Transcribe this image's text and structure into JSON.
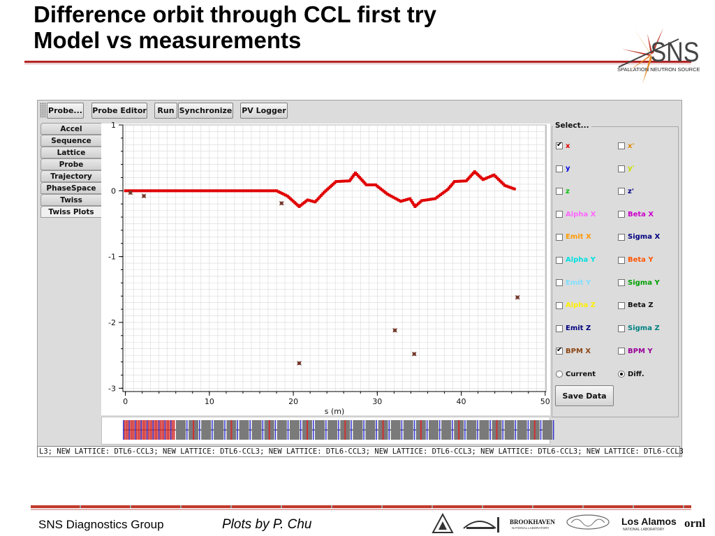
{
  "slide": {
    "title_line1": "Difference orbit through CCL first try",
    "title_line2": "Model vs measurements",
    "logo": {
      "text": "SNS",
      "subtitle": "SPALLATION NEUTRON SOURCE"
    },
    "footer_left": "SNS Diagnostics Group",
    "footer_mid": "Plots by P. Chu",
    "lab_logos": [
      "argonne-logo",
      "berkeley-lab-logo",
      "brookhaven-logo",
      "jefferson-lab-logo",
      "los-alamos-logo",
      "ornl-logo"
    ],
    "lab_logo_text": {
      "brookhaven": "BROOKHAVEN",
      "brookhaven_sub": "NATIONAL LABORATORY",
      "los_alamos": "Los Alamos",
      "los_alamos_sub": "NATIONAL LABORATORY",
      "ornl": "ornl"
    }
  },
  "toolbar": {
    "buttons": [
      "Probe...",
      "Probe Editor",
      "Run",
      "Synchronize",
      "PV Logger"
    ]
  },
  "tabs": [
    "Accel",
    "Sequence",
    "Lattice",
    "Probe",
    "Trajectory",
    "PhaseSpace",
    "Twiss",
    "Twiss Plots"
  ],
  "active_tab": "Twiss Plots",
  "select_panel": {
    "legend": "Select...",
    "options": [
      {
        "label": "x",
        "checked": true,
        "color": "#e00000"
      },
      {
        "label": "x'",
        "checked": false,
        "color": "#e08a00"
      },
      {
        "label": "y",
        "checked": false,
        "color": "#0000e0"
      },
      {
        "label": "y'",
        "checked": false,
        "color": "#c8e000"
      },
      {
        "label": "z",
        "checked": false,
        "color": "#00c000"
      },
      {
        "label": "z'",
        "checked": false,
        "color": "#000080"
      },
      {
        "label": "Alpha X",
        "checked": false,
        "color": "#ff66ff"
      },
      {
        "label": "Beta X",
        "checked": false,
        "color": "#cc00cc"
      },
      {
        "label": "Emit X",
        "checked": false,
        "color": "#ff9900"
      },
      {
        "label": "Sigma X",
        "checked": false,
        "color": "#000080"
      },
      {
        "label": "Alpha Y",
        "checked": false,
        "color": "#00e0e0"
      },
      {
        "label": "Beta Y",
        "checked": false,
        "color": "#ff5500"
      },
      {
        "label": "Emit Y",
        "checked": false,
        "color": "#7fdfff"
      },
      {
        "label": "Sigma Y",
        "checked": false,
        "color": "#00a000"
      },
      {
        "label": "Alpha Z",
        "checked": false,
        "color": "#ffee00"
      },
      {
        "label": "Beta Z",
        "checked": false,
        "color": "#111111"
      },
      {
        "label": "Emit Z",
        "checked": false,
        "color": "#000080"
      },
      {
        "label": "Sigma Z",
        "checked": false,
        "color": "#008080"
      },
      {
        "label": "BPM X",
        "checked": true,
        "color": "#8b4513"
      },
      {
        "label": "BPM Y",
        "checked": false,
        "color": "#990099"
      }
    ],
    "radios": [
      {
        "label": "Current",
        "selected": false
      },
      {
        "label": "Diff.",
        "selected": true
      }
    ],
    "save_button": "Save Data"
  },
  "status_text": "L3; NEW LATTICE: DTL6-CCL3; NEW LATTICE: DTL6-CCL3; NEW LATTICE: DTL6-CCL3; NEW LATTICE: DTL6-CCL3; NEW LATTICE: DTL6-CCL3; NEW LATTICE: DTL6-CCL3",
  "chart_data": {
    "type": "line",
    "xlabel": "s (m)",
    "ylabel": "",
    "xlim": [
      -0.3,
      50.1
    ],
    "ylim": [
      -3.05,
      1.0
    ],
    "x_ticks": [
      0,
      10,
      20,
      30,
      40,
      50
    ],
    "y_ticks": [
      1,
      0,
      -1,
      -2,
      -3
    ],
    "grid": true,
    "series": [
      {
        "type": "line",
        "color": "#e00000",
        "x": [
          0,
          18,
          19.3,
          20.7,
          21.7,
          22.6,
          23.7,
          25.1,
          26.7,
          27.4,
          28.7,
          29.8,
          31.2,
          32.8,
          33.9,
          34.5,
          35.3,
          36.9,
          38.4,
          39.2,
          40.6,
          41.6,
          42.6,
          43.9,
          45.2,
          46.5
        ],
        "y": [
          0.0,
          0.0,
          -0.08,
          -0.24,
          -0.14,
          -0.17,
          -0.02,
          0.14,
          0.15,
          0.27,
          0.09,
          0.09,
          -0.05,
          -0.16,
          -0.12,
          -0.24,
          -0.15,
          -0.12,
          0.02,
          0.14,
          0.15,
          0.29,
          0.17,
          0.24,
          0.08,
          0.02
        ]
      },
      {
        "type": "scatter",
        "color": "#8b4a3c",
        "x": [
          0.6,
          2.2,
          18.6,
          20.7,
          32.1,
          34.4,
          46.7
        ],
        "y": [
          -0.03,
          -0.08,
          -0.19,
          -2.62,
          -2.12,
          -2.48,
          -1.62
        ]
      }
    ]
  },
  "lattice_bar": {
    "elements": [
      {
        "type": "rf",
        "color": "#d03030"
      },
      {
        "type": "quad",
        "color": "#3030d0"
      },
      {
        "type": "drift",
        "color": "#7a7a7a"
      },
      {
        "type": "bpm",
        "color": "#20b0c0"
      }
    ]
  }
}
